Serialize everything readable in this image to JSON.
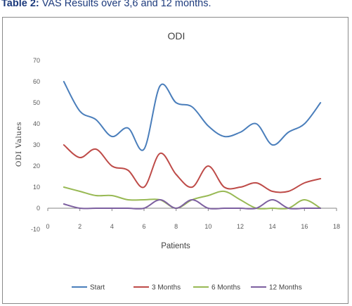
{
  "caption": {
    "label": "Table 2:",
    "text": " VAS Results over 3,6 and 12 months."
  },
  "chart_data": {
    "type": "line",
    "title": "ODI",
    "xlabel": "Patients",
    "ylabel": "ODI Values",
    "xlim": [
      0,
      18
    ],
    "ylim": [
      -10,
      70
    ],
    "xticks": [
      0,
      2,
      4,
      6,
      8,
      10,
      12,
      14,
      16,
      18
    ],
    "yticks": [
      -10,
      0,
      10,
      20,
      30,
      40,
      50,
      60,
      70
    ],
    "grid": false,
    "legend_position": "bottom",
    "x": [
      1,
      2,
      3,
      4,
      5,
      6,
      7,
      8,
      9,
      10,
      11,
      12,
      13,
      14,
      15,
      16,
      17
    ],
    "series": [
      {
        "name": "Start",
        "color": "#4a7ebb",
        "values": [
          60,
          46,
          42,
          34,
          38,
          28,
          58,
          50,
          48,
          39,
          34,
          36,
          40,
          30,
          36,
          40,
          50
        ]
      },
      {
        "name": "3 Months",
        "color": "#be4b48",
        "values": [
          30,
          24,
          28,
          20,
          18,
          10,
          26,
          16,
          10,
          20,
          10,
          10,
          12,
          8,
          8,
          12,
          14
        ]
      },
      {
        "name": "6 Months",
        "color": "#98b954",
        "values": [
          10,
          8,
          6,
          6,
          4,
          4,
          4,
          0,
          4,
          6,
          8,
          4,
          0,
          0,
          0,
          4,
          0
        ]
      },
      {
        "name": "12 Months",
        "color": "#7d60a0",
        "values": [
          2,
          0,
          0,
          0,
          0,
          0,
          4,
          0,
          4,
          0,
          0,
          0,
          0,
          4,
          0,
          0,
          0
        ]
      }
    ]
  }
}
